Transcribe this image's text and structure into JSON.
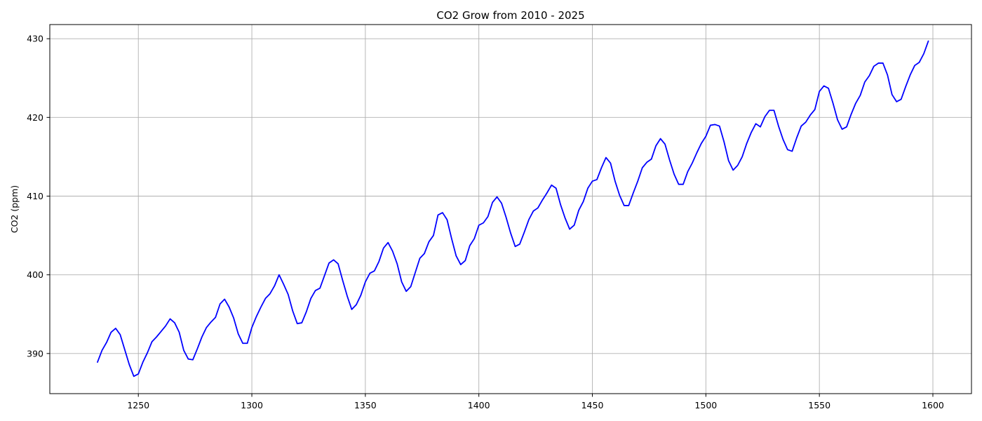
{
  "chart_data": {
    "type": "line",
    "title": "CO2 Grow from 2010 - 2025",
    "xlabel": "",
    "ylabel": "CO2 (ppm)",
    "xlim": [
      1211,
      1617
    ],
    "ylim": [
      384.9,
      431.8
    ],
    "xticks": [
      1250,
      1300,
      1350,
      1400,
      1450,
      1500,
      1550,
      1600
    ],
    "yticks": [
      390,
      400,
      410,
      420,
      430
    ],
    "grid": true,
    "legend": "none",
    "series": [
      {
        "color": "#0000ff",
        "points": [
          [
            1232,
            388.9
          ],
          [
            1234,
            390.4
          ],
          [
            1236,
            391.4
          ],
          [
            1238,
            392.7
          ],
          [
            1240,
            393.2
          ],
          [
            1242,
            392.4
          ],
          [
            1244,
            390.5
          ],
          [
            1246,
            388.6
          ],
          [
            1248,
            387.1
          ],
          [
            1250,
            387.4
          ],
          [
            1252,
            388.9
          ],
          [
            1254,
            390.1
          ],
          [
            1256,
            391.5
          ],
          [
            1258,
            392.1
          ],
          [
            1260,
            392.8
          ],
          [
            1262,
            393.5
          ],
          [
            1264,
            394.4
          ],
          [
            1266,
            393.9
          ],
          [
            1268,
            392.7
          ],
          [
            1270,
            390.4
          ],
          [
            1272,
            389.3
          ],
          [
            1274,
            389.2
          ],
          [
            1276,
            390.6
          ],
          [
            1278,
            392.1
          ],
          [
            1280,
            393.3
          ],
          [
            1282,
            394.0
          ],
          [
            1284,
            394.6
          ],
          [
            1286,
            396.3
          ],
          [
            1288,
            396.9
          ],
          [
            1290,
            395.9
          ],
          [
            1292,
            394.5
          ],
          [
            1294,
            392.5
          ],
          [
            1296,
            391.3
          ],
          [
            1298,
            391.3
          ],
          [
            1300,
            393.3
          ],
          [
            1302,
            394.7
          ],
          [
            1304,
            395.9
          ],
          [
            1306,
            397.0
          ],
          [
            1308,
            397.6
          ],
          [
            1310,
            398.6
          ],
          [
            1312,
            400.0
          ],
          [
            1314,
            398.8
          ],
          [
            1316,
            397.5
          ],
          [
            1318,
            395.4
          ],
          [
            1320,
            393.8
          ],
          [
            1322,
            393.9
          ],
          [
            1324,
            395.3
          ],
          [
            1326,
            397.0
          ],
          [
            1328,
            398.0
          ],
          [
            1330,
            398.3
          ],
          [
            1332,
            399.9
          ],
          [
            1334,
            401.5
          ],
          [
            1336,
            401.9
          ],
          [
            1338,
            401.4
          ],
          [
            1340,
            399.3
          ],
          [
            1342,
            397.3
          ],
          [
            1344,
            395.6
          ],
          [
            1346,
            396.2
          ],
          [
            1348,
            397.4
          ],
          [
            1350,
            399.1
          ],
          [
            1352,
            400.2
          ],
          [
            1354,
            400.5
          ],
          [
            1356,
            401.7
          ],
          [
            1358,
            403.4
          ],
          [
            1360,
            404.1
          ],
          [
            1362,
            403.0
          ],
          [
            1364,
            401.4
          ],
          [
            1366,
            399.1
          ],
          [
            1368,
            397.9
          ],
          [
            1370,
            398.5
          ],
          [
            1372,
            400.3
          ],
          [
            1374,
            402.1
          ],
          [
            1376,
            402.7
          ],
          [
            1378,
            404.2
          ],
          [
            1380,
            405.0
          ],
          [
            1382,
            407.6
          ],
          [
            1384,
            407.9
          ],
          [
            1386,
            407.0
          ],
          [
            1388,
            404.6
          ],
          [
            1390,
            402.4
          ],
          [
            1392,
            401.3
          ],
          [
            1394,
            401.8
          ],
          [
            1396,
            403.7
          ],
          [
            1398,
            404.6
          ],
          [
            1400,
            406.3
          ],
          [
            1402,
            406.6
          ],
          [
            1404,
            407.4
          ],
          [
            1406,
            409.2
          ],
          [
            1408,
            409.9
          ],
          [
            1410,
            409.1
          ],
          [
            1412,
            407.3
          ],
          [
            1414,
            405.3
          ],
          [
            1416,
            403.6
          ],
          [
            1418,
            403.9
          ],
          [
            1420,
            405.4
          ],
          [
            1422,
            407.0
          ],
          [
            1424,
            408.1
          ],
          [
            1426,
            408.5
          ],
          [
            1428,
            409.5
          ],
          [
            1430,
            410.4
          ],
          [
            1432,
            411.4
          ],
          [
            1434,
            411.0
          ],
          [
            1436,
            408.9
          ],
          [
            1438,
            407.2
          ],
          [
            1440,
            405.8
          ],
          [
            1442,
            406.3
          ],
          [
            1444,
            408.2
          ],
          [
            1446,
            409.3
          ],
          [
            1448,
            411.0
          ],
          [
            1450,
            411.9
          ],
          [
            1452,
            412.1
          ],
          [
            1454,
            413.6
          ],
          [
            1456,
            414.9
          ],
          [
            1458,
            414.2
          ],
          [
            1460,
            411.9
          ],
          [
            1462,
            410.1
          ],
          [
            1464,
            408.8
          ],
          [
            1466,
            408.8
          ],
          [
            1468,
            410.4
          ],
          [
            1470,
            411.9
          ],
          [
            1472,
            413.6
          ],
          [
            1474,
            414.3
          ],
          [
            1476,
            414.7
          ],
          [
            1478,
            416.4
          ],
          [
            1480,
            417.3
          ],
          [
            1482,
            416.6
          ],
          [
            1484,
            414.6
          ],
          [
            1486,
            412.8
          ],
          [
            1488,
            411.5
          ],
          [
            1490,
            411.5
          ],
          [
            1492,
            413.1
          ],
          [
            1494,
            414.2
          ],
          [
            1496,
            415.5
          ],
          [
            1498,
            416.7
          ],
          [
            1500,
            417.6
          ],
          [
            1502,
            419.0
          ],
          [
            1504,
            419.1
          ],
          [
            1506,
            418.9
          ],
          [
            1508,
            416.9
          ],
          [
            1510,
            414.5
          ],
          [
            1512,
            413.3
          ],
          [
            1514,
            413.9
          ],
          [
            1516,
            415.0
          ],
          [
            1518,
            416.7
          ],
          [
            1520,
            418.1
          ],
          [
            1522,
            419.2
          ],
          [
            1524,
            418.8
          ],
          [
            1526,
            420.1
          ],
          [
            1528,
            420.9
          ],
          [
            1530,
            420.9
          ],
          [
            1532,
            418.9
          ],
          [
            1534,
            417.2
          ],
          [
            1536,
            415.9
          ],
          [
            1538,
            415.7
          ],
          [
            1540,
            417.4
          ],
          [
            1542,
            418.9
          ],
          [
            1544,
            419.4
          ],
          [
            1546,
            420.3
          ],
          [
            1548,
            421.0
          ],
          [
            1550,
            423.3
          ],
          [
            1552,
            424.0
          ],
          [
            1554,
            423.7
          ],
          [
            1556,
            421.8
          ],
          [
            1558,
            419.7
          ],
          [
            1560,
            418.5
          ],
          [
            1562,
            418.8
          ],
          [
            1564,
            420.4
          ],
          [
            1566,
            421.8
          ],
          [
            1568,
            422.8
          ],
          [
            1570,
            424.5
          ],
          [
            1572,
            425.3
          ],
          [
            1574,
            426.5
          ],
          [
            1576,
            426.9
          ],
          [
            1578,
            426.9
          ],
          [
            1580,
            425.4
          ],
          [
            1582,
            422.9
          ],
          [
            1584,
            422.0
          ],
          [
            1586,
            422.3
          ],
          [
            1588,
            423.9
          ],
          [
            1590,
            425.4
          ],
          [
            1592,
            426.6
          ],
          [
            1594,
            427.0
          ],
          [
            1596,
            428.1
          ],
          [
            1598,
            429.7
          ]
        ]
      }
    ]
  }
}
